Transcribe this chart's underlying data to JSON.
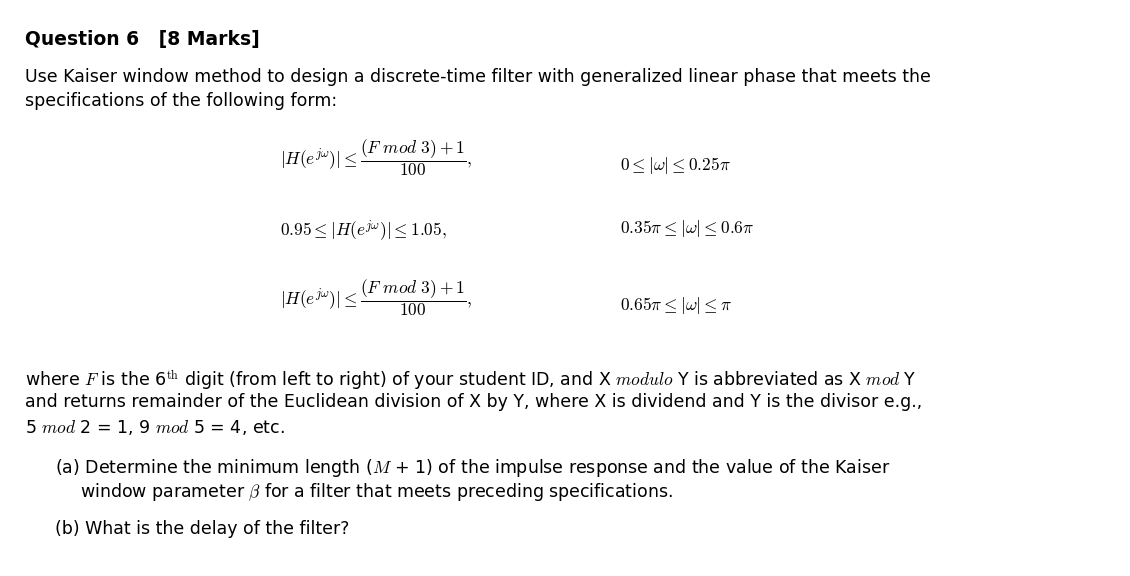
{
  "bg_color": "#ffffff",
  "fig_width": 11.3,
  "fig_height": 5.76,
  "dpi": 100
}
